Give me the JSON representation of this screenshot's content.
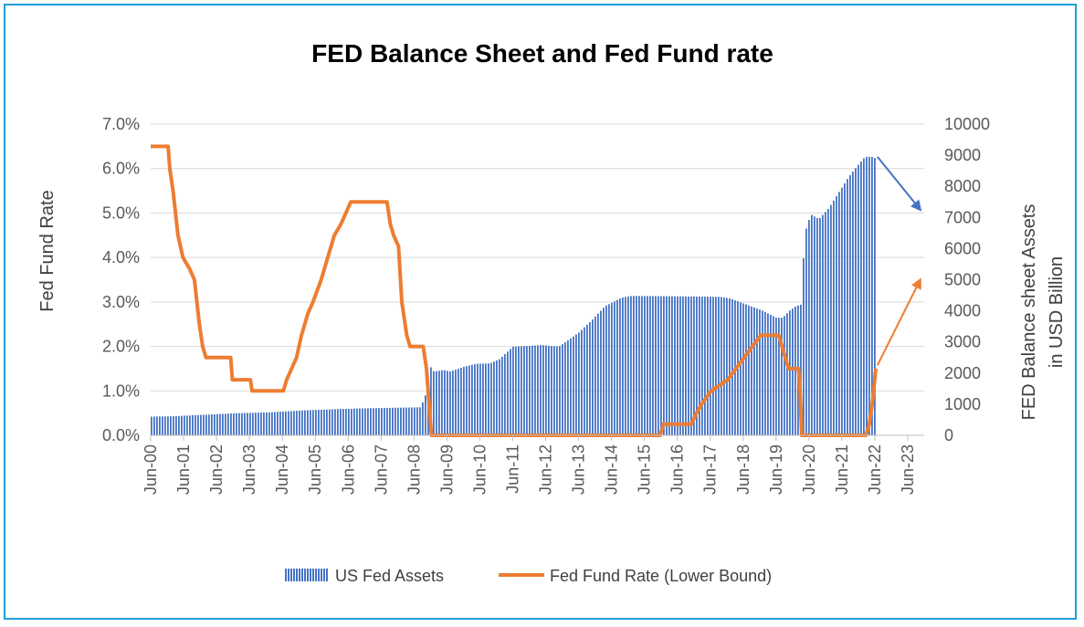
{
  "chart_data": {
    "type": "bar+line",
    "title": "FED Balance Sheet and Fed Fund rate",
    "y_left_label": "Fed Fund Rate",
    "y_right_label_lines": [
      "FED Balance sheet Assets",
      "in USD Billion"
    ],
    "y_left_ticks": [
      "0.0%",
      "1.0%",
      "2.0%",
      "3.0%",
      "4.0%",
      "5.0%",
      "6.0%",
      "7.0%"
    ],
    "y_right_ticks": [
      "0",
      "1000",
      "2000",
      "3000",
      "4000",
      "5000",
      "6000",
      "7000",
      "8000",
      "9000",
      "10000"
    ],
    "y_left_range": [
      0,
      7
    ],
    "y_right_range": [
      0,
      10000
    ],
    "x_ticks": [
      "Jun-00",
      "Jun-01",
      "Jun-02",
      "Jun-03",
      "Jun-04",
      "Jun-05",
      "Jun-06",
      "Jun-07",
      "Jun-08",
      "Jun-09",
      "Jun-10",
      "Jun-11",
      "Jun-12",
      "Jun-13",
      "Jun-14",
      "Jun-15",
      "Jun-16",
      "Jun-17",
      "Jun-18",
      "Jun-19",
      "Jun-20",
      "Jun-21",
      "Jun-22",
      "Jun-23"
    ],
    "x_range_years": [
      2000.42,
      2023.92
    ],
    "grid": true,
    "legend_position": "bottom",
    "series": [
      {
        "name": "US Fed Assets",
        "kind": "bar",
        "axis": "right",
        "color": "#4472c4",
        "points": [
          [
            2000.42,
            600
          ],
          [
            2001.0,
            610
          ],
          [
            2002.0,
            660
          ],
          [
            2003.0,
            710
          ],
          [
            2004.0,
            740
          ],
          [
            2005.0,
            800
          ],
          [
            2006.0,
            840
          ],
          [
            2007.0,
            870
          ],
          [
            2008.0,
            890
          ],
          [
            2008.6,
            900
          ],
          [
            2008.75,
            1300
          ],
          [
            2008.9,
            2200
          ],
          [
            2009.0,
            2050
          ],
          [
            2009.3,
            2100
          ],
          [
            2009.5,
            2050
          ],
          [
            2009.9,
            2200
          ],
          [
            2010.3,
            2300
          ],
          [
            2010.7,
            2310
          ],
          [
            2011.0,
            2450
          ],
          [
            2011.4,
            2850
          ],
          [
            2011.8,
            2870
          ],
          [
            2012.3,
            2900
          ],
          [
            2012.8,
            2850
          ],
          [
            2013.0,
            3000
          ],
          [
            2013.4,
            3300
          ],
          [
            2013.8,
            3700
          ],
          [
            2014.2,
            4150
          ],
          [
            2014.7,
            4420
          ],
          [
            2015.0,
            4480
          ],
          [
            2016.0,
            4470
          ],
          [
            2017.0,
            4460
          ],
          [
            2017.7,
            4450
          ],
          [
            2018.0,
            4400
          ],
          [
            2018.5,
            4200
          ],
          [
            2019.0,
            4000
          ],
          [
            2019.4,
            3780
          ],
          [
            2019.6,
            3780
          ],
          [
            2019.8,
            4000
          ],
          [
            2020.0,
            4150
          ],
          [
            2020.15,
            4200
          ],
          [
            2020.2,
            5300
          ],
          [
            2020.3,
            6600
          ],
          [
            2020.45,
            7100
          ],
          [
            2020.7,
            6950
          ],
          [
            2021.0,
            7300
          ],
          [
            2021.3,
            7800
          ],
          [
            2021.6,
            8300
          ],
          [
            2021.9,
            8700
          ],
          [
            2022.1,
            8950
          ],
          [
            2022.3,
            8950
          ],
          [
            2022.42,
            8900
          ]
        ]
      },
      {
        "name": "Fed Fund Rate (Lower Bound)",
        "kind": "line",
        "axis": "left",
        "color": "#ed7d31",
        "points": [
          [
            2000.42,
            6.5
          ],
          [
            2000.95,
            6.5
          ],
          [
            2001.0,
            6.0
          ],
          [
            2001.1,
            5.5
          ],
          [
            2001.25,
            4.5
          ],
          [
            2001.4,
            4.0
          ],
          [
            2001.6,
            3.75
          ],
          [
            2001.75,
            3.5
          ],
          [
            2001.9,
            2.5
          ],
          [
            2002.0,
            2.0
          ],
          [
            2002.1,
            1.75
          ],
          [
            2002.85,
            1.75
          ],
          [
            2002.9,
            1.25
          ],
          [
            2003.45,
            1.25
          ],
          [
            2003.5,
            1.0
          ],
          [
            2004.45,
            1.0
          ],
          [
            2004.55,
            1.25
          ],
          [
            2004.7,
            1.5
          ],
          [
            2004.85,
            1.75
          ],
          [
            2005.0,
            2.25
          ],
          [
            2005.2,
            2.75
          ],
          [
            2005.35,
            3.0
          ],
          [
            2005.6,
            3.5
          ],
          [
            2005.8,
            4.0
          ],
          [
            2006.0,
            4.5
          ],
          [
            2006.2,
            4.75
          ],
          [
            2006.35,
            5.0
          ],
          [
            2006.5,
            5.25
          ],
          [
            2007.6,
            5.25
          ],
          [
            2007.7,
            4.75
          ],
          [
            2007.8,
            4.5
          ],
          [
            2007.95,
            4.25
          ],
          [
            2008.05,
            3.0
          ],
          [
            2008.2,
            2.25
          ],
          [
            2008.3,
            2.0
          ],
          [
            2008.7,
            2.0
          ],
          [
            2008.8,
            1.5
          ],
          [
            2008.85,
            1.0
          ],
          [
            2008.95,
            0.0
          ],
          [
            2015.9,
            0.0
          ],
          [
            2016.0,
            0.25
          ],
          [
            2016.85,
            0.25
          ],
          [
            2017.0,
            0.5
          ],
          [
            2017.2,
            0.75
          ],
          [
            2017.45,
            1.0
          ],
          [
            2017.95,
            1.25
          ],
          [
            2018.2,
            1.5
          ],
          [
            2018.45,
            1.75
          ],
          [
            2018.7,
            2.0
          ],
          [
            2018.95,
            2.25
          ],
          [
            2019.5,
            2.25
          ],
          [
            2019.6,
            2.0
          ],
          [
            2019.7,
            1.75
          ],
          [
            2019.8,
            1.5
          ],
          [
            2020.1,
            1.5
          ],
          [
            2020.15,
            1.0
          ],
          [
            2020.2,
            0.0
          ],
          [
            2022.15,
            0.0
          ],
          [
            2022.25,
            0.25
          ],
          [
            2022.35,
            0.75
          ],
          [
            2022.45,
            1.5
          ]
        ]
      }
    ],
    "annotations": [
      {
        "kind": "arrow",
        "color": "#4472c4",
        "from": [
          2022.5,
          8950
        ],
        "to": [
          2023.8,
          7250
        ]
      },
      {
        "kind": "arrow",
        "color": "#ed7d31",
        "from": [
          2022.5,
          2250
        ],
        "to": [
          2023.8,
          5000
        ]
      }
    ]
  }
}
